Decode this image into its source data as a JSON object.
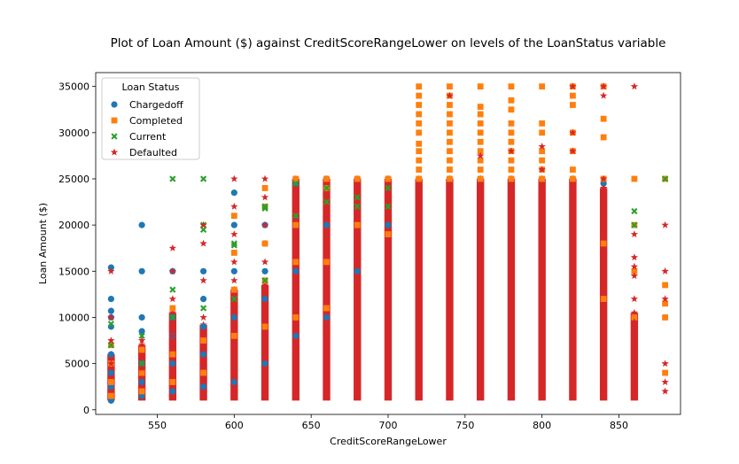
{
  "chart_data": {
    "type": "scatter",
    "title": "Plot of Loan Amount ($) against CreditScoreRangeLower on levels of the LoanStatus variable",
    "xlabel": "CreditScoreRangeLower",
    "ylabel": "Loan Amount ($)",
    "xlim": [
      510,
      890
    ],
    "ylim": [
      -500,
      36500
    ],
    "x_ticks": [
      550,
      600,
      650,
      700,
      750,
      800,
      850
    ],
    "y_ticks": [
      0,
      5000,
      10000,
      15000,
      20000,
      25000,
      30000,
      35000
    ],
    "legend": {
      "title": "Loan Status",
      "placement": "top-left"
    },
    "series": [
      {
        "name": "Chargedoff",
        "color": "#1f77b4",
        "marker": "circle",
        "points": [
          [
            520,
            1000
          ],
          [
            520,
            2500
          ],
          [
            520,
            4000
          ],
          [
            520,
            6000
          ],
          [
            520,
            9000
          ],
          [
            520,
            10000
          ],
          [
            520,
            10700
          ],
          [
            520,
            12000
          ],
          [
            520,
            15400
          ],
          [
            540,
            1500
          ],
          [
            540,
            3000
          ],
          [
            540,
            5000
          ],
          [
            540,
            8500
          ],
          [
            540,
            10000
          ],
          [
            540,
            15000
          ],
          [
            540,
            20000
          ],
          [
            560,
            2000
          ],
          [
            560,
            5000
          ],
          [
            560,
            8000
          ],
          [
            560,
            10000
          ],
          [
            560,
            15000
          ],
          [
            580,
            2500
          ],
          [
            580,
            6000
          ],
          [
            580,
            9000
          ],
          [
            580,
            12000
          ],
          [
            580,
            15000
          ],
          [
            600,
            3000
          ],
          [
            600,
            10000
          ],
          [
            600,
            15000
          ],
          [
            600,
            20000
          ],
          [
            600,
            23500
          ],
          [
            620,
            5000
          ],
          [
            620,
            12000
          ],
          [
            620,
            15000
          ],
          [
            620,
            18000
          ],
          [
            620,
            20000
          ],
          [
            640,
            8000
          ],
          [
            640,
            15000
          ],
          [
            640,
            20000
          ],
          [
            640,
            24500
          ],
          [
            660,
            10000
          ],
          [
            660,
            20000
          ],
          [
            660,
            25000
          ],
          [
            680,
            15000
          ],
          [
            680,
            25000
          ],
          [
            700,
            20000
          ],
          [
            700,
            25000
          ],
          [
            740,
            25000
          ],
          [
            760,
            25000
          ],
          [
            780,
            25000
          ],
          [
            800,
            25000
          ],
          [
            820,
            25000
          ],
          [
            840,
            24500
          ]
        ]
      },
      {
        "name": "Completed",
        "color": "#ff7f0e",
        "marker": "square",
        "points": [
          [
            520,
            1500
          ],
          [
            520,
            3000
          ],
          [
            520,
            5000
          ],
          [
            520,
            7000
          ],
          [
            540,
            2000
          ],
          [
            540,
            4000
          ],
          [
            540,
            6500
          ],
          [
            560,
            3000
          ],
          [
            560,
            6000
          ],
          [
            560,
            11000
          ],
          [
            580,
            4000
          ],
          [
            580,
            7500
          ],
          [
            600,
            8000
          ],
          [
            600,
            13000
          ],
          [
            600,
            17000
          ],
          [
            600,
            21000
          ],
          [
            620,
            9000
          ],
          [
            620,
            14000
          ],
          [
            620,
            18000
          ],
          [
            620,
            22000
          ],
          [
            620,
            24000
          ],
          [
            640,
            10000
          ],
          [
            640,
            16000
          ],
          [
            640,
            20000
          ],
          [
            640,
            25000
          ],
          [
            660,
            11000
          ],
          [
            660,
            16000
          ],
          [
            660,
            24000
          ],
          [
            660,
            25000
          ],
          [
            680,
            25000
          ],
          [
            680,
            20000
          ],
          [
            700,
            25000
          ],
          [
            700,
            19000
          ],
          [
            720,
            25000
          ],
          [
            720,
            26000
          ],
          [
            720,
            27000
          ],
          [
            720,
            28000
          ],
          [
            720,
            28800
          ],
          [
            720,
            30000
          ],
          [
            720,
            31000
          ],
          [
            720,
            32000
          ],
          [
            720,
            33000
          ],
          [
            720,
            34000
          ],
          [
            720,
            35000
          ],
          [
            740,
            25000
          ],
          [
            740,
            26000
          ],
          [
            740,
            27000
          ],
          [
            740,
            28000
          ],
          [
            740,
            29000
          ],
          [
            740,
            30000
          ],
          [
            740,
            31000
          ],
          [
            740,
            32000
          ],
          [
            740,
            33000
          ],
          [
            740,
            34000
          ],
          [
            740,
            35000
          ],
          [
            760,
            25000
          ],
          [
            760,
            26000
          ],
          [
            760,
            27000
          ],
          [
            760,
            28000
          ],
          [
            760,
            29000
          ],
          [
            760,
            30000
          ],
          [
            760,
            31000
          ],
          [
            760,
            32000
          ],
          [
            760,
            32800
          ],
          [
            760,
            35000
          ],
          [
            780,
            25000
          ],
          [
            780,
            26000
          ],
          [
            780,
            27000
          ],
          [
            780,
            28000
          ],
          [
            780,
            29000
          ],
          [
            780,
            30000
          ],
          [
            780,
            31000
          ],
          [
            780,
            32500
          ],
          [
            780,
            33500
          ],
          [
            780,
            35000
          ],
          [
            800,
            25000
          ],
          [
            800,
            26000
          ],
          [
            800,
            27000
          ],
          [
            800,
            28000
          ],
          [
            800,
            30000
          ],
          [
            800,
            31000
          ],
          [
            800,
            35000
          ],
          [
            820,
            25000
          ],
          [
            820,
            26000
          ],
          [
            820,
            28000
          ],
          [
            820,
            30000
          ],
          [
            820,
            33000
          ],
          [
            820,
            34000
          ],
          [
            820,
            35000
          ],
          [
            840,
            25000
          ],
          [
            840,
            29500
          ],
          [
            840,
            31500
          ],
          [
            840,
            35000
          ],
          [
            840,
            18000
          ],
          [
            840,
            12000
          ],
          [
            860,
            25000
          ],
          [
            860,
            20000
          ],
          [
            860,
            15000
          ],
          [
            860,
            10000
          ],
          [
            880,
            25000
          ],
          [
            880,
            13500
          ],
          [
            880,
            11500
          ],
          [
            880,
            10000
          ],
          [
            880,
            4000
          ]
        ]
      },
      {
        "name": "Current",
        "color": "#2ca02c",
        "marker": "x",
        "points": [
          [
            520,
            9300
          ],
          [
            520,
            7000
          ],
          [
            540,
            8000
          ],
          [
            540,
            5000
          ],
          [
            560,
            25000
          ],
          [
            560,
            13000
          ],
          [
            560,
            10000
          ],
          [
            580,
            25000
          ],
          [
            580,
            20000
          ],
          [
            580,
            19500
          ],
          [
            580,
            11000
          ],
          [
            600,
            18000
          ],
          [
            600,
            17800
          ],
          [
            600,
            12000
          ],
          [
            620,
            22000
          ],
          [
            620,
            21800
          ],
          [
            620,
            14000
          ],
          [
            640,
            24500
          ],
          [
            640,
            21000
          ],
          [
            660,
            24000
          ],
          [
            660,
            22500
          ],
          [
            680,
            23000
          ],
          [
            680,
            22000
          ],
          [
            700,
            24000
          ],
          [
            700,
            22000
          ],
          [
            860,
            21500
          ],
          [
            860,
            20000
          ],
          [
            880,
            25000
          ]
        ]
      },
      {
        "name": "Defaulted",
        "color": "#d62728",
        "marker": "star",
        "points": [
          [
            520,
            15000
          ],
          [
            520,
            10000
          ],
          [
            520,
            7500
          ],
          [
            520,
            5000
          ],
          [
            540,
            7500
          ],
          [
            540,
            4500
          ],
          [
            560,
            17500
          ],
          [
            560,
            15000
          ],
          [
            560,
            12000
          ],
          [
            560,
            8000
          ],
          [
            580,
            20000
          ],
          [
            580,
            18000
          ],
          [
            580,
            14000
          ],
          [
            580,
            10000
          ],
          [
            600,
            25000
          ],
          [
            600,
            22000
          ],
          [
            600,
            19000
          ],
          [
            600,
            16000
          ],
          [
            600,
            14000
          ],
          [
            620,
            25000
          ],
          [
            620,
            23000
          ],
          [
            620,
            20000
          ],
          [
            620,
            16000
          ],
          [
            740,
            34000
          ],
          [
            760,
            27500
          ],
          [
            780,
            28000
          ],
          [
            800,
            26000
          ],
          [
            800,
            28500
          ],
          [
            820,
            35000
          ],
          [
            820,
            30000
          ],
          [
            820,
            28000
          ],
          [
            840,
            35000
          ],
          [
            840,
            34000
          ],
          [
            840,
            25000
          ],
          [
            840,
            24000
          ],
          [
            840,
            16000
          ],
          [
            840,
            9000
          ],
          [
            840,
            6000
          ],
          [
            860,
            35000
          ],
          [
            860,
            19000
          ],
          [
            860,
            16500
          ],
          [
            860,
            15500
          ],
          [
            860,
            14500
          ],
          [
            860,
            12000
          ],
          [
            860,
            9500
          ],
          [
            860,
            7000
          ],
          [
            860,
            4000
          ],
          [
            880,
            20000
          ],
          [
            880,
            15000
          ],
          [
            880,
            12000
          ],
          [
            880,
            5000
          ],
          [
            880,
            3000
          ],
          [
            880,
            2000
          ]
        ]
      }
    ],
    "dense_columns": {
      "x": [
        520,
        540,
        560,
        580,
        600,
        620,
        640,
        660,
        680,
        700,
        720,
        740,
        760,
        780,
        800,
        820,
        840,
        860
      ],
      "top": [
        6000,
        7000,
        10500,
        9200,
        13000,
        13500,
        25000,
        25000,
        25000,
        25000,
        25000,
        25000,
        25000,
        25000,
        25000,
        25000,
        24000,
        10500
      ],
      "bottom": [
        1000,
        1000,
        1000,
        1000,
        1000,
        1000,
        1000,
        1000,
        1000,
        1000,
        1000,
        1000,
        1000,
        1000,
        1000,
        1000,
        1000,
        1000
      ],
      "color": "#d62728"
    }
  }
}
